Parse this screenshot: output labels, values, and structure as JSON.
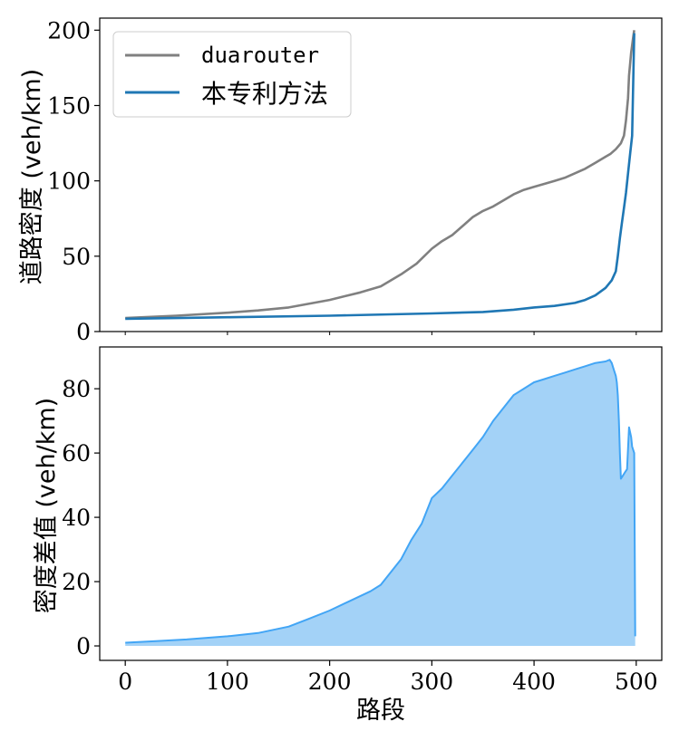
{
  "colors": {
    "duarouter": "#808080",
    "method": "#1f77b4",
    "diff_line": "#42a5f5",
    "diff_fill": "#a3d2f7"
  },
  "chart_data": [
    {
      "type": "line",
      "ylabel": "道路密度 (veh/km)",
      "xlim": [
        -25,
        525
      ],
      "ylim": [
        0,
        208
      ],
      "yticks": [
        0,
        50,
        100,
        150,
        200
      ],
      "legend": {
        "placement": "top-left",
        "entries": [
          "duarouter",
          "本专利方法"
        ]
      },
      "series": [
        {
          "name": "duarouter",
          "x": [
            0,
            50,
            100,
            130,
            160,
            200,
            230,
            250,
            270,
            285,
            300,
            310,
            320,
            330,
            340,
            350,
            360,
            370,
            380,
            390,
            400,
            410,
            420,
            430,
            440,
            450,
            460,
            470,
            475,
            480,
            485,
            488,
            490,
            492,
            493,
            495,
            497,
            498
          ],
          "y": [
            9,
            10.5,
            12.5,
            14,
            16,
            21,
            26,
            30,
            38,
            45,
            55,
            60,
            64,
            70,
            76,
            80,
            83,
            87,
            91,
            94,
            96,
            98,
            100,
            102,
            105,
            108,
            112,
            116,
            118,
            121,
            125,
            130,
            140,
            155,
            170,
            185,
            195,
            200
          ]
        },
        {
          "name": "本专利方法",
          "x": [
            0,
            100,
            200,
            300,
            350,
            380,
            400,
            420,
            440,
            450,
            460,
            470,
            476,
            480,
            482,
            484,
            486,
            488,
            490,
            492,
            494,
            496,
            498
          ],
          "y": [
            8.5,
            9.5,
            10.5,
            12,
            13,
            14.5,
            16,
            17,
            19,
            21,
            24,
            29,
            34,
            40,
            50,
            62,
            72,
            82,
            92,
            105,
            118,
            130,
            198
          ]
        }
      ]
    },
    {
      "type": "area",
      "xlabel": "路段",
      "ylabel": "密度差值 (veh/km)",
      "xlim": [
        -25,
        525
      ],
      "ylim": [
        -4.5,
        93
      ],
      "xticks": [
        0,
        100,
        200,
        300,
        400,
        500
      ],
      "yticks": [
        0,
        20,
        40,
        60,
        80
      ],
      "series": [
        {
          "name": "",
          "x": [
            0,
            30,
            60,
            100,
            130,
            160,
            180,
            200,
            220,
            240,
            250,
            260,
            270,
            280,
            290,
            300,
            310,
            320,
            330,
            340,
            350,
            360,
            370,
            380,
            390,
            400,
            410,
            420,
            430,
            440,
            450,
            460,
            470,
            474,
            476,
            478,
            480,
            481,
            482,
            483,
            484,
            485,
            487,
            489,
            491,
            493,
            495,
            496,
            498,
            499
          ],
          "y": [
            1,
            1.5,
            2,
            3,
            4,
            6,
            8.5,
            11,
            14,
            17,
            19,
            23,
            27,
            33,
            38,
            46,
            49,
            53,
            57,
            61,
            65,
            70,
            74,
            78,
            80,
            82,
            83,
            84,
            85,
            86,
            87,
            88,
            88.5,
            89,
            88,
            86,
            84,
            82,
            78,
            70,
            60,
            52,
            53,
            54,
            55,
            68,
            65,
            62,
            60,
            3
          ]
        }
      ]
    }
  ]
}
